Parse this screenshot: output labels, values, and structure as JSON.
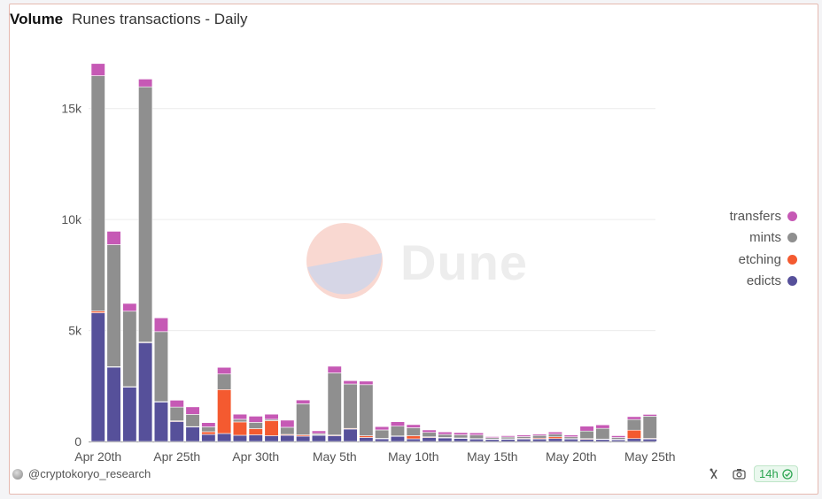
{
  "header": {
    "title": "Volume",
    "subtitle": "Runes transactions - Daily"
  },
  "watermark": {
    "brand": "Dune"
  },
  "footer": {
    "author": "@cryptokoryo_research",
    "refresh_label": "14h"
  },
  "colors": {
    "transfers": "#c659b5",
    "mints": "#8f8f8f",
    "etching": "#f45a30",
    "edicts": "#56509a",
    "grid": "#ececec",
    "accent": "#2aa44f"
  },
  "chart_data": {
    "type": "bar",
    "stacked": true,
    "title": "Runes transactions - Daily",
    "xlabel": "",
    "ylabel": "",
    "ylim": [
      0,
      17500
    ],
    "yticks": [
      0,
      5000,
      10000,
      15000
    ],
    "ytick_labels": [
      "0",
      "5k",
      "10k",
      "15k"
    ],
    "xtick_labels": [
      "Apr 20th",
      "Apr 25th",
      "Apr 30th",
      "May 5th",
      "May 10th",
      "May 15th",
      "May 20th",
      "May 25th"
    ],
    "xtick_index": [
      0,
      5,
      10,
      15,
      20,
      25,
      30,
      35
    ],
    "grid": true,
    "legend_position": "right",
    "categories": [
      "2024-04-20",
      "2024-04-21",
      "2024-04-22",
      "2024-04-23",
      "2024-04-24",
      "2024-04-25",
      "2024-04-26",
      "2024-04-27",
      "2024-04-28",
      "2024-04-29",
      "2024-04-30",
      "2024-05-01",
      "2024-05-02",
      "2024-05-03",
      "2024-05-04",
      "2024-05-05",
      "2024-05-06",
      "2024-05-07",
      "2024-05-08",
      "2024-05-09",
      "2024-05-10",
      "2024-05-11",
      "2024-05-12",
      "2024-05-13",
      "2024-05-14",
      "2024-05-15",
      "2024-05-16",
      "2024-05-17",
      "2024-05-18",
      "2024-05-19",
      "2024-05-20",
      "2024-05-21",
      "2024-05-22",
      "2024-05-23",
      "2024-05-24",
      "2024-05-25"
    ],
    "series": [
      {
        "name": "edicts",
        "values": [
          5800,
          3350,
          2450,
          4450,
          1780,
          900,
          650,
          320,
          360,
          280,
          300,
          260,
          280,
          240,
          280,
          260,
          560,
          180,
          120,
          230,
          120,
          180,
          160,
          140,
          110,
          90,
          100,
          110,
          110,
          130,
          110,
          100,
          90,
          80,
          130,
          110
        ]
      },
      {
        "name": "etching",
        "values": [
          80,
          20,
          20,
          30,
          20,
          30,
          20,
          120,
          1980,
          600,
          280,
          680,
          40,
          60,
          20,
          30,
          30,
          80,
          20,
          20,
          140,
          30,
          20,
          20,
          20,
          20,
          20,
          30,
          40,
          80,
          20,
          30,
          20,
          20,
          380,
          30
        ]
      },
      {
        "name": "mints",
        "values": [
          10600,
          5500,
          3400,
          11500,
          3150,
          620,
          550,
          220,
          700,
          120,
          280,
          60,
          320,
          1400,
          60,
          2800,
          2000,
          2300,
          380,
          440,
          360,
          200,
          140,
          140,
          160,
          60,
          80,
          80,
          120,
          120,
          80,
          340,
          480,
          80,
          480,
          1000
        ]
      },
      {
        "name": "transfers",
        "values": [
          550,
          600,
          350,
          350,
          620,
          310,
          340,
          190,
          300,
          230,
          280,
          230,
          320,
          170,
          120,
          300,
          150,
          160,
          150,
          200,
          140,
          110,
          110,
          100,
          100,
          50,
          60,
          70,
          60,
          100,
          80,
          220,
          160,
          80,
          130,
          80
        ]
      }
    ]
  }
}
